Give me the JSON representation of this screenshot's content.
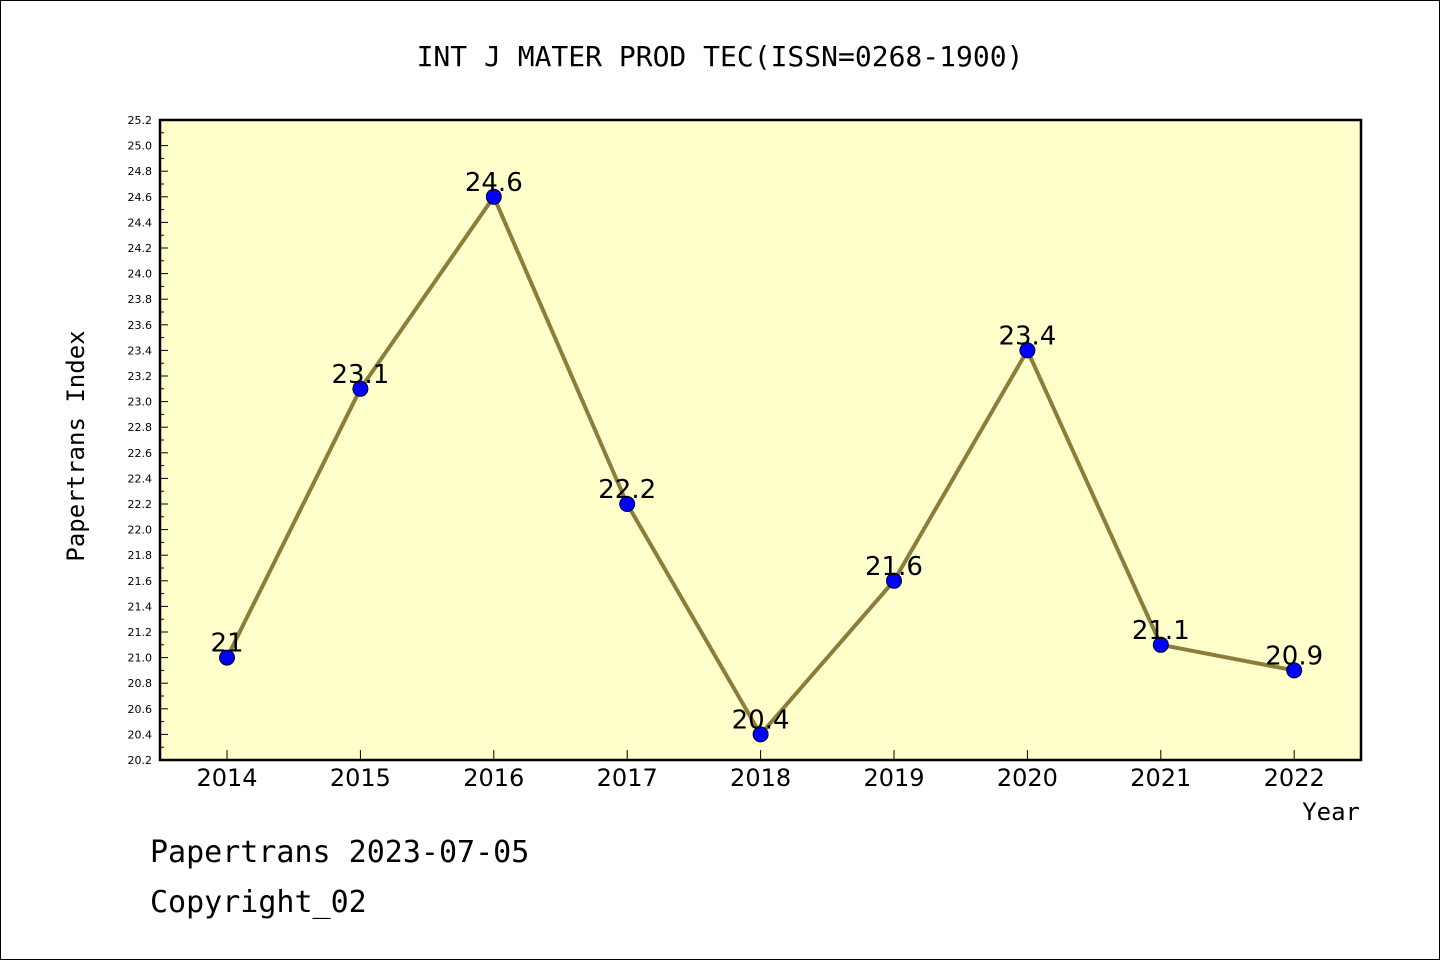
{
  "chart_data": {
    "type": "line",
    "title": "INT J MATER PROD TEC(ISSN=0268-1900)",
    "xlabel": "Year",
    "ylabel": "Papertrans Index",
    "categories": [
      "2014",
      "2015",
      "2016",
      "2017",
      "2018",
      "2019",
      "2020",
      "2021",
      "2022"
    ],
    "series": [
      {
        "values": [
          21,
          23.1,
          24.6,
          22.2,
          20.4,
          21.6,
          23.4,
          21.1,
          20.9
        ],
        "data_labels": [
          "21",
          "23.1",
          "24.6",
          "22.2",
          "20.4",
          "21.6",
          "23.4",
          "21.1",
          "20.9"
        ]
      }
    ],
    "ylim": [
      20.2,
      25.2
    ],
    "ytick_step": 0.2,
    "yticks": [
      "20.2",
      "20.4",
      "20.6",
      "20.8",
      "21.0",
      "21.2",
      "21.4",
      "21.6",
      "21.8",
      "22.0",
      "22.2",
      "22.4",
      "22.6",
      "22.8",
      "23.0",
      "23.2",
      "23.4",
      "23.6",
      "23.8",
      "24.0",
      "24.2",
      "24.4",
      "24.6",
      "24.8",
      "25.0",
      "25.2"
    ],
    "grid": false,
    "colors": {
      "plot_background": "#ffffcc",
      "line": "#8b7d3a",
      "marker": "#0000ff"
    }
  },
  "footer": {
    "line1": "Papertrans 2023-07-05",
    "line2": "Copyright_02"
  }
}
